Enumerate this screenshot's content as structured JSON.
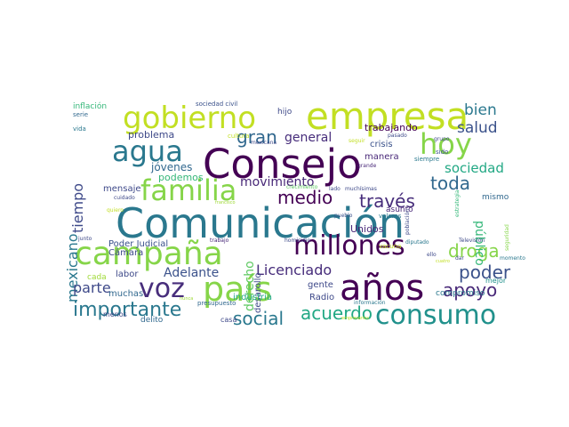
{
  "words": [
    {
      "text": "Comunicación",
      "color": "#2a788e"
    },
    {
      "text": "Consejo",
      "color": "#440154"
    },
    {
      "text": "empresa",
      "color": "#c2df23"
    },
    {
      "text": "gobierno",
      "color": "#c2df23"
    },
    {
      "text": "hoy",
      "color": "#86d549"
    },
    {
      "text": "agua",
      "color": "#2a788e"
    },
    {
      "text": "familia",
      "color": "#86d549"
    },
    {
      "text": "campaña",
      "color": "#86d549"
    },
    {
      "text": "millones",
      "color": "#440154"
    },
    {
      "text": "país",
      "color": "#86d549"
    },
    {
      "text": "voz",
      "color": "#472d7b"
    },
    {
      "text": "años",
      "color": "#440154"
    },
    {
      "text": "consumo",
      "color": "#21918c"
    },
    {
      "text": "importante",
      "color": "#2a788e"
    },
    {
      "text": "social",
      "color": "#2a788e"
    },
    {
      "text": "acuerdo",
      "color": "#22a884"
    },
    {
      "text": "apoyo",
      "color": "#482878"
    },
    {
      "text": "poder",
      "color": "#3b528b"
    },
    {
      "text": "droga",
      "color": "#86d549"
    },
    {
      "text": "toda",
      "color": "#31688e"
    },
    {
      "text": "través",
      "color": "#472d7b"
    },
    {
      "text": "medio",
      "color": "#440154"
    },
    {
      "text": "tiempo",
      "color": "#3e4989"
    },
    {
      "text": "mexicano",
      "color": "#2a788e"
    },
    {
      "text": "gran",
      "color": "#31688e"
    },
    {
      "text": "bien",
      "color": "#2a788e"
    },
    {
      "text": "salud",
      "color": "#3b528b"
    },
    {
      "text": "sociedad",
      "color": "#22a884"
    },
    {
      "text": "público",
      "color": "#35b779"
    },
    {
      "text": "Licenciado",
      "color": "#472d7b"
    },
    {
      "text": "parte",
      "color": "#3e4989"
    },
    {
      "text": "derecho",
      "color": "#5ec962"
    },
    {
      "text": "Adelante",
      "color": "#3b528b"
    },
    {
      "text": "movimiento",
      "color": "#482878"
    },
    {
      "text": "general",
      "color": "#472d7b"
    },
    {
      "text": "problema",
      "color": "#3e4989"
    },
    {
      "text": "jóvenes",
      "color": "#31688e"
    },
    {
      "text": "podemos",
      "color": "#35b779"
    },
    {
      "text": "mensaje",
      "color": "#3e4989"
    },
    {
      "text": "trabajando",
      "color": "#440154"
    },
    {
      "text": "crisis",
      "color": "#3b528b"
    },
    {
      "text": "manera",
      "color": "#482878"
    },
    {
      "text": "Unidos",
      "color": "#482878"
    },
    {
      "text": "desarollo",
      "color": "#3e4989"
    },
    {
      "text": "Poder Judicial",
      "color": "#3b528b"
    },
    {
      "text": "Cámara",
      "color": "#3e4989"
    },
    {
      "text": "muchas",
      "color": "#31688e"
    },
    {
      "text": "labor",
      "color": "#3e4989"
    },
    {
      "text": "cada",
      "color": "#a0da39"
    },
    {
      "text": "industria",
      "color": "#22a884"
    },
    {
      "text": "gente",
      "color": "#3e4989"
    },
    {
      "text": "Radio",
      "color": "#3e4989"
    },
    {
      "text": "compromiso",
      "color": "#2a788e"
    },
    {
      "text": "asunto",
      "color": "#482878"
    },
    {
      "text": "mismo",
      "color": "#31688e"
    },
    {
      "text": "mejor",
      "color": "#21918c"
    },
    {
      "text": "inflación",
      "color": "#35b779"
    },
    {
      "text": "serie",
      "color": "#31688e"
    },
    {
      "text": "vida",
      "color": "#2a788e"
    },
    {
      "text": "hijo",
      "color": "#3e4989"
    },
    {
      "text": "sociedad civil",
      "color": "#3b528b"
    },
    {
      "text": "cultura",
      "color": "#c2df23"
    },
    {
      "text": "mexicana",
      "color": "#3e4989"
    },
    {
      "text": "seguir",
      "color": "#c2df23"
    },
    {
      "text": "pasado",
      "color": "#3e4989"
    },
    {
      "text": "grupo",
      "color": "#3e4989"
    },
    {
      "text": "siempre",
      "color": "#2a788e"
    },
    {
      "text": "sido",
      "color": "#3b528b"
    },
    {
      "text": "estrategia",
      "color": "#35b779"
    },
    {
      "text": "grande",
      "color": "#482878"
    },
    {
      "text": "cuidado",
      "color": "#3e4989"
    },
    {
      "text": "quiero",
      "color": "#c2df23"
    },
    {
      "text": "francisco",
      "color": "#a0da39"
    },
    {
      "text": "crecimiento",
      "color": "#5ec962"
    },
    {
      "text": "lado",
      "color": "#3e4989"
    },
    {
      "text": "muchísimas",
      "color": "#3e4989"
    },
    {
      "text": "población",
      "color": "#3e4989"
    },
    {
      "text": "pueblo",
      "color": "#3b528b"
    },
    {
      "text": "valores",
      "color": "#2a788e"
    },
    {
      "text": "seguridad",
      "color": "#86d549"
    },
    {
      "text": "junto",
      "color": "#3e4989"
    },
    {
      "text": "trabajo",
      "color": "#482878"
    },
    {
      "text": "homicidio",
      "color": "#3e4989"
    },
    {
      "text": "vacuna",
      "color": "#c2df23"
    },
    {
      "text": "diputado",
      "color": "#2a788e"
    },
    {
      "text": "ello",
      "color": "#3e4989"
    },
    {
      "text": "cuatro",
      "color": "#c2df23"
    },
    {
      "text": "dar",
      "color": "#3e4989"
    },
    {
      "text": "momento",
      "color": "#2a788e"
    },
    {
      "text": "Televisión",
      "color": "#3e4989"
    },
    {
      "text": "nunca",
      "color": "#a0da39"
    },
    {
      "text": "presupuesto",
      "color": "#31688e"
    },
    {
      "text": "información",
      "color": "#2a788e"
    },
    {
      "text": "menos",
      "color": "#3e4989"
    },
    {
      "text": "delito",
      "color": "#31688e"
    },
    {
      "text": "casa",
      "color": "#3e4989"
    },
    {
      "text": "empresarios",
      "color": "#c2df23"
    }
  ]
}
